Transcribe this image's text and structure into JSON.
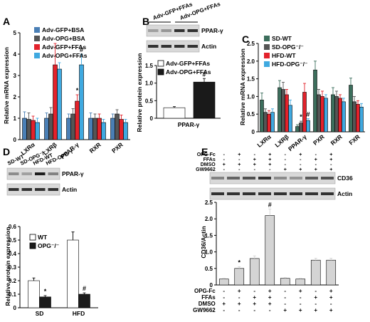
{
  "chart_data": [
    {
      "panel": "A",
      "type": "bar",
      "ylabel": "Relative mRNA expression",
      "ylim": [
        0,
        5
      ],
      "yticks": [
        "0",
        "1",
        "2",
        "3",
        "4",
        "5"
      ],
      "categories": [
        "LXRα",
        "LXRβ",
        "PPAR-γ",
        "RXR",
        "PXR"
      ],
      "series": [
        {
          "name": "Adv-GFP+BSA",
          "color": "#4a7fb5",
          "values": [
            1.0,
            1.0,
            1.0,
            1.0,
            1.0
          ],
          "errors": [
            0.3,
            0.25,
            0.2,
            0.25,
            0.2
          ]
        },
        {
          "name": "Adv-OPG+BSA",
          "color": "#555555",
          "values": [
            0.95,
            1.2,
            1.2,
            1.0,
            1.2
          ],
          "errors": [
            0.3,
            0.3,
            0.25,
            0.2,
            0.2
          ]
        },
        {
          "name": "Adv-GFP+FFAs",
          "color": "#e3222b",
          "values": [
            0.9,
            3.5,
            1.8,
            1.0,
            0.95
          ],
          "errors": [
            0.2,
            1.0,
            0.3,
            0.2,
            0.2
          ]
        },
        {
          "name": "Adv-OPG+FFAs",
          "color": "#3fa9e0",
          "values": [
            0.8,
            3.3,
            3.5,
            0.8,
            0.8
          ],
          "errors": [
            0.2,
            0.3,
            0.5,
            0.15,
            0.15
          ]
        }
      ],
      "annotations": [
        {
          "text": "*",
          "category": "PPAR-γ",
          "series": "Adv-GFP+FFAs"
        },
        {
          "text": "#",
          "category": "PPAR-γ",
          "series": "Adv-OPG+FFAs"
        }
      ]
    },
    {
      "panel": "B",
      "type": "bar",
      "ylabel": "Relative protein expression",
      "ylim": [
        0,
        1.5
      ],
      "yticks": [
        "0",
        "0.5",
        "1.0",
        "1.5"
      ],
      "categories": [
        "PPAR-γ"
      ],
      "series": [
        {
          "name": "Adv-GFP+FFAs",
          "color": "#ffffff",
          "values": [
            0.3
          ],
          "errors": [
            0.03
          ]
        },
        {
          "name": "Adv-OPG+FFAs",
          "color": "#1a1a1a",
          "values": [
            1.03
          ],
          "errors": [
            0.1
          ]
        }
      ],
      "annotations": [
        {
          "text": "#",
          "series": "Adv-OPG+FFAs"
        }
      ],
      "blot": {
        "headers": [
          "Adv-GFP+FFAs",
          "Adv-OPG+FFAs"
        ],
        "rows": [
          "PPAR-γ",
          "Actin"
        ]
      }
    },
    {
      "panel": "C",
      "type": "bar",
      "ylabel": "Relative mRNA expression",
      "ylim": [
        0,
        2.5
      ],
      "yticks": [
        "0",
        "0.5",
        "1.0",
        "1.5",
        "2.0",
        "2.5"
      ],
      "categories": [
        "LXRα",
        "LXRβ",
        "PPAR-γ",
        "PXR",
        "RXR",
        "FXR"
      ],
      "series": [
        {
          "name": "SD-WT",
          "color": "#3c6e5c",
          "values": [
            0.9,
            1.25,
            0.15,
            1.75,
            1.05,
            1.32
          ],
          "errors": [
            0.2,
            0.2,
            0.05,
            0.25,
            0.2,
            0.2
          ]
        },
        {
          "name": "SD-OPG⁻/⁻",
          "color": "#555555",
          "values": [
            0.55,
            1.2,
            0.25,
            1.05,
            1.0,
            0.85
          ],
          "errors": [
            0.1,
            0.2,
            0.05,
            0.15,
            0.15,
            0.15
          ]
        },
        {
          "name": "HFD-WT",
          "color": "#e3222b",
          "values": [
            0.5,
            1.05,
            1.12,
            1.0,
            0.95,
            0.78
          ],
          "errors": [
            0.1,
            0.15,
            0.25,
            0.15,
            0.1,
            0.1
          ]
        },
        {
          "name": "HFD-OPG⁻/⁻",
          "color": "#3fa9e0",
          "values": [
            0.55,
            0.75,
            0.32,
            0.95,
            0.85,
            0.7
          ],
          "errors": [
            0.1,
            0.15,
            0.05,
            0.1,
            0.1,
            0.1
          ]
        }
      ],
      "annotations": [
        {
          "text": "*",
          "category": "PPAR-γ",
          "series": "SD-OPG⁻/⁻"
        },
        {
          "text": "#",
          "category": "PPAR-γ",
          "series": "HFD-OPG⁻/⁻"
        }
      ]
    },
    {
      "panel": "D",
      "type": "bar",
      "ylabel": "Relative protein expression",
      "ylim": [
        0,
        0.6
      ],
      "yticks": [
        "0",
        "0.1",
        "0.2",
        "0.3",
        "0.4",
        "0.5",
        "0.6"
      ],
      "categories": [
        "SD",
        "HFD"
      ],
      "series": [
        {
          "name": "WT",
          "color": "#ffffff",
          "values": [
            0.2,
            0.5
          ],
          "errors": [
            0.02,
            0.06
          ]
        },
        {
          "name": "OPG⁻/⁻",
          "color": "#1a1a1a",
          "values": [
            0.08,
            0.1
          ],
          "errors": [
            0.01,
            0.01
          ]
        }
      ],
      "annotations": [
        {
          "text": "*",
          "category": "SD",
          "series": "OPG⁻/⁻"
        },
        {
          "text": "#",
          "category": "HFD",
          "series": "OPG⁻/⁻"
        }
      ],
      "blot": {
        "headers": [
          "SD-WT",
          "SD-OPG⁻/⁻",
          "HFD-WT",
          "HFD-OPG⁻/⁻"
        ],
        "rows": [
          "PPAR-γ",
          "Actin"
        ]
      }
    },
    {
      "panel": "E",
      "type": "bar",
      "ylabel": "CD36/Actin",
      "ylim": [
        0,
        2.5
      ],
      "yticks": [
        "0",
        "0.5",
        "1.0",
        "1.5",
        "2.0",
        "2.5"
      ],
      "values": [
        0.18,
        0.5,
        0.8,
        2.1,
        0.2,
        0.18,
        0.75,
        0.75
      ],
      "errors": [
        0.02,
        0.05,
        0.08,
        0.2,
        0.02,
        0.02,
        0.06,
        0.06
      ],
      "annotations": [
        {
          "text": "*",
          "index": 1
        },
        {
          "text": "#",
          "index": 3
        }
      ],
      "conditions": {
        "labels": [
          "OPG-Fc",
          "FFAs",
          "DMSO",
          "GW9662"
        ],
        "signs": [
          [
            "-",
            "+",
            "-",
            "+",
            "-",
            "+",
            "-",
            "+"
          ],
          [
            "-",
            "-",
            "+",
            "+",
            "-",
            "-",
            "+",
            "+"
          ],
          [
            "+",
            "+",
            "+",
            "+",
            "-",
            "-",
            "-",
            "-"
          ],
          [
            "-",
            "-",
            "-",
            "-",
            "+",
            "+",
            "+",
            "+"
          ]
        ]
      },
      "blot": {
        "rows": [
          "CD36",
          "Actin"
        ]
      }
    }
  ],
  "panel_letters": [
    "A",
    "B",
    "C",
    "D",
    "E"
  ],
  "bar_outline_color": "#000000",
  "bar_panel_e_color": "#d4d4d4"
}
